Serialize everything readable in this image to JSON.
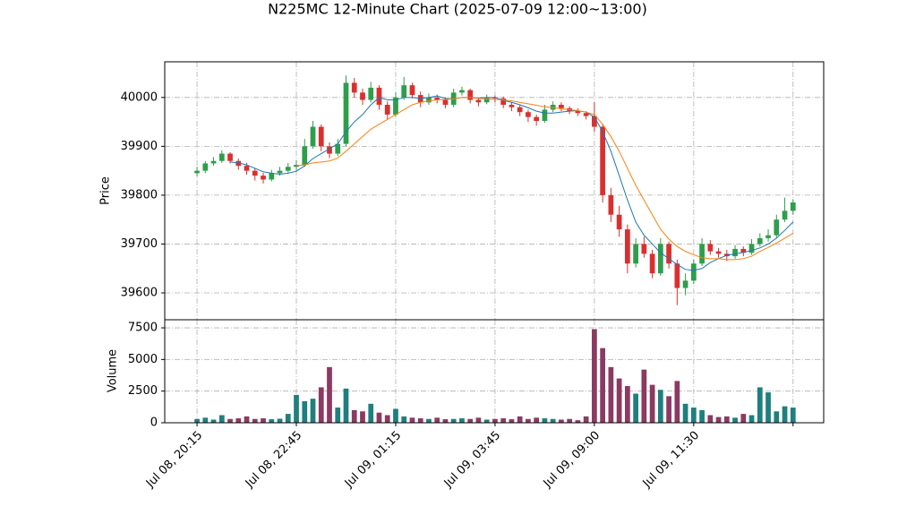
{
  "chart_data": {
    "type": "candlestick",
    "title": "N225MC 12-Minute Chart (2025-07-09 12:00~13:00)",
    "xlim": [
      -3.9,
      75.7
    ],
    "xticks": [
      {
        "value": 0,
        "label": "Jul 08, 20:15"
      },
      {
        "value": 12,
        "label": "Jul 08, 22:45"
      },
      {
        "value": 24,
        "label": "Jul 09, 01:15"
      },
      {
        "value": 36,
        "label": "Jul 09, 03:45"
      },
      {
        "value": 48,
        "label": "Jul 09, 09:00"
      },
      {
        "value": 60,
        "label": "Jul 09, 11:30"
      },
      {
        "value": 72,
        "label": null
      }
    ],
    "grid": true,
    "up_color": "#2e9e4a",
    "down_color": "#d9302f",
    "price": {
      "ylabel": "Price",
      "ylim": [
        39545,
        40073
      ],
      "yticks": [
        39600,
        39700,
        39800,
        39900,
        40000
      ],
      "open": [
        39845,
        39850,
        39865,
        39870,
        39885,
        39870,
        39860,
        39850,
        39840,
        39832,
        39845,
        39850,
        39858,
        39862,
        39900,
        39940,
        39900,
        39885,
        39905,
        40030,
        40010,
        39995,
        40020,
        39985,
        39965,
        40000,
        40025,
        40005,
        39990,
        40000,
        39995,
        39985,
        40010,
        40015,
        39995,
        39990,
        40000,
        39998,
        39985,
        39980,
        39970,
        39960,
        39952,
        39975,
        39985,
        39978,
        39972,
        39968,
        39962,
        39940,
        39800,
        39760,
        39730,
        39660,
        39700,
        39680,
        39640,
        39700,
        39660,
        39610,
        39625,
        39660,
        39700,
        39685,
        39680,
        39675,
        39690,
        39682,
        39700,
        39712,
        39718,
        39750,
        39768
      ],
      "high": [
        39858,
        39870,
        39878,
        39892,
        39888,
        39875,
        39866,
        39856,
        39846,
        39852,
        39858,
        39866,
        39872,
        39915,
        39952,
        39945,
        39908,
        39915,
        40045,
        40040,
        40018,
        40032,
        40025,
        39992,
        40010,
        40042,
        40030,
        40012,
        40008,
        40006,
        40000,
        40018,
        40022,
        40018,
        40000,
        40006,
        40004,
        40002,
        39990,
        39984,
        39975,
        39965,
        39985,
        39992,
        39990,
        39982,
        39978,
        39972,
        39990,
        39945,
        39815,
        39778,
        39740,
        39712,
        39715,
        39688,
        39712,
        39705,
        39668,
        39640,
        39668,
        39712,
        39708,
        39692,
        39688,
        39698,
        39695,
        39710,
        39722,
        39730,
        39760,
        39795,
        39792
      ],
      "low": [
        39838,
        39845,
        39860,
        39866,
        39865,
        39852,
        39842,
        39830,
        39824,
        39828,
        39840,
        39846,
        39850,
        39858,
        39895,
        39890,
        39876,
        39880,
        39900,
        40000,
        39985,
        39990,
        39975,
        39955,
        39960,
        39995,
        39998,
        39980,
        39985,
        39988,
        39978,
        39980,
        40004,
        39988,
        39982,
        39986,
        39990,
        39978,
        39972,
        39962,
        39950,
        39942,
        39948,
        39970,
        39972,
        39966,
        39962,
        39955,
        39930,
        39785,
        39745,
        39715,
        39640,
        39652,
        39672,
        39630,
        39635,
        39650,
        39575,
        39595,
        39618,
        39655,
        39678,
        39672,
        39665,
        39670,
        39675,
        39678,
        39695,
        39705,
        39712,
        39745,
        39760
      ],
      "close": [
        39850,
        39865,
        39870,
        39885,
        39870,
        39860,
        39850,
        39840,
        39832,
        39845,
        39850,
        39858,
        39862,
        39900,
        39940,
        39900,
        39885,
        39905,
        40030,
        40010,
        39995,
        40020,
        39985,
        39965,
        40000,
        40025,
        40005,
        39990,
        40000,
        39995,
        39985,
        40010,
        40015,
        39995,
        39990,
        40000,
        39998,
        39985,
        39980,
        39970,
        39960,
        39952,
        39975,
        39985,
        39978,
        39972,
        39968,
        39962,
        39940,
        39800,
        39760,
        39730,
        39660,
        39700,
        39680,
        39640,
        39700,
        39660,
        39610,
        39625,
        39660,
        39700,
        39685,
        39680,
        39675,
        39690,
        39682,
        39700,
        39712,
        39718,
        39750,
        39768,
        39785
      ],
      "mav": [
        {
          "color": "#1f77b4",
          "values": [
            null,
            null,
            null,
            null,
            39868,
            39866,
            39862,
            39855,
            39848,
            39845,
            39843,
            39845,
            39849,
            39860,
            39875,
            39885,
            39895,
            39905,
            39930,
            39950,
            39965,
            39985,
            40000,
            39995,
            39995,
            40000,
            40000,
            39998,
            40000,
            40003,
            39998,
            39997,
            40000,
            40000,
            39999,
            40000,
            40000,
            39994,
            39990,
            39985,
            39979,
            39972,
            39968,
            39968,
            39970,
            39972,
            39973,
            39970,
            39960,
            39930,
            39890,
            39840,
            39790,
            39745,
            39718,
            39700,
            39682,
            39670,
            39658,
            39648,
            39646,
            39650,
            39662,
            39670,
            39677,
            39680,
            39683,
            39687,
            39692,
            39700,
            39712,
            39728,
            39745
          ]
        },
        {
          "color": "#ff7f0e",
          "values": [
            null,
            null,
            null,
            null,
            null,
            null,
            null,
            null,
            null,
            null,
            null,
            null,
            39860,
            39862,
            39866,
            39868,
            39870,
            39876,
            39890,
            39905,
            39920,
            39935,
            39945,
            39955,
            39965,
            39975,
            39985,
            39990,
            39993,
            39995,
            39996,
            39997,
            40000,
            40000,
            39998,
            39997,
            39996,
            39995,
            39993,
            39990,
            39987,
            39984,
            39981,
            39979,
            39977,
            39975,
            39973,
            39970,
            39965,
            39945,
            39920,
            39890,
            39855,
            39820,
            39790,
            39760,
            39730,
            39710,
            39695,
            39685,
            39678,
            39672,
            39670,
            39670,
            39668,
            39668,
            39670,
            39675,
            39685,
            39693,
            39702,
            39712,
            39722
          ]
        }
      ]
    },
    "volume": {
      "ylabel": "Volume",
      "ylim": [
        0,
        8140
      ],
      "yticks": [
        0,
        2500,
        5000,
        7500
      ],
      "up_color": "#1f7f7f",
      "down_color": "#8b3a62",
      "values": [
        300,
        400,
        250,
        600,
        300,
        350,
        500,
        300,
        350,
        280,
        320,
        700,
        2200,
        1700,
        1900,
        2800,
        4400,
        1200,
        2700,
        1000,
        900,
        1500,
        800,
        600,
        1100,
        500,
        400,
        350,
        300,
        400,
        280,
        300,
        350,
        300,
        400,
        250,
        300,
        350,
        280,
        500,
        300,
        400,
        350,
        300,
        250,
        300,
        200,
        500,
        7400,
        5900,
        4400,
        3500,
        2900,
        2300,
        4200,
        3000,
        2600,
        2100,
        3300,
        1500,
        1200,
        1000,
        600,
        450,
        500,
        400,
        700,
        600,
        2800,
        2400,
        900,
        1300,
        1200
      ]
    }
  }
}
